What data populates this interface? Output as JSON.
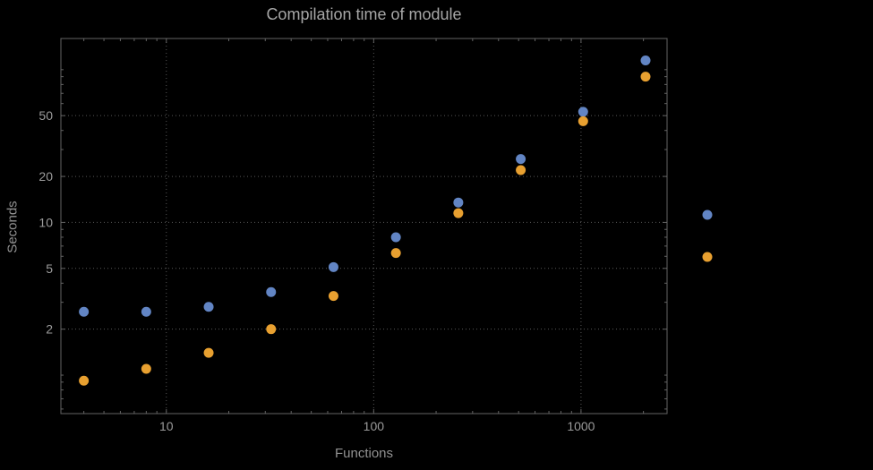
{
  "chart_data": {
    "type": "scatter",
    "title": "Compilation time of module",
    "xlabel": "Functions",
    "ylabel": "Seconds",
    "xscale": "log",
    "yscale": "log",
    "xlim": [
      3.1,
      2600
    ],
    "ylim": [
      0.56,
      160
    ],
    "xticks": [
      10,
      100,
      1000
    ],
    "yticks": [
      2,
      5,
      10,
      20,
      50
    ],
    "grid": true,
    "x": [
      4,
      8,
      16,
      32,
      64,
      128,
      256,
      512,
      1024,
      2048
    ],
    "series": [
      {
        "name": "series-blue",
        "color": "#6285c4",
        "values": [
          2.6,
          2.6,
          2.8,
          3.5,
          5.1,
          8.0,
          13.5,
          26,
          53,
          115
        ]
      },
      {
        "name": "series-orange",
        "color": "#e8a030",
        "values": [
          0.92,
          1.1,
          1.4,
          2.0,
          3.3,
          6.3,
          11.5,
          22,
          46,
          90
        ]
      }
    ],
    "legend": {
      "position": "right",
      "markers": [
        {
          "name": "legend-marker-blue",
          "color": "#6285c4"
        },
        {
          "name": "legend-marker-orange",
          "color": "#e8a030"
        }
      ]
    }
  },
  "colors": {
    "background": "#000000",
    "frame": "#646464",
    "grid": "#585858",
    "tick_text": "#9b9b9b",
    "title_text": "#a6a6a6"
  }
}
